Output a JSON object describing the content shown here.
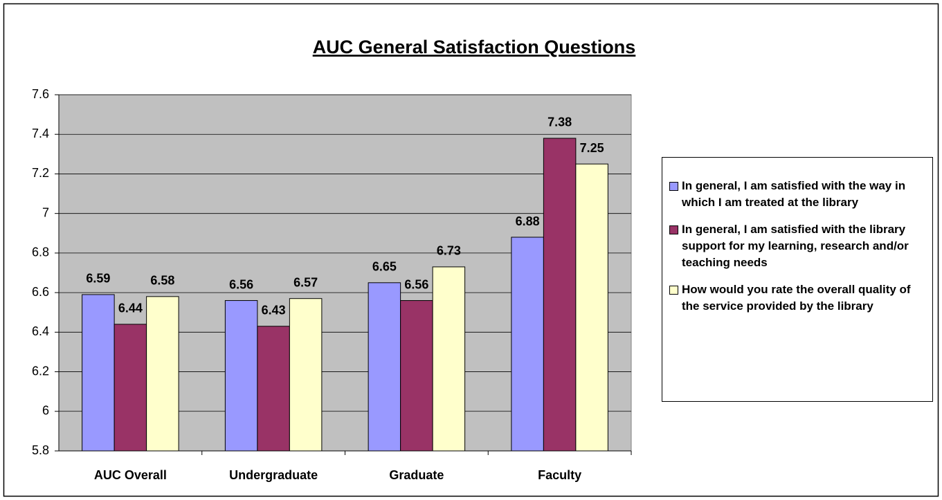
{
  "chart_data": {
    "type": "bar",
    "title": "AUC General Satisfaction Questions",
    "categories": [
      "AUC Overall",
      "Undergraduate",
      "Graduate",
      "Faculty"
    ],
    "series": [
      {
        "name": "In general, I am satisfied with the way in which I am treated at the library",
        "color": "#9999ff",
        "values": [
          6.59,
          6.56,
          6.65,
          6.88
        ]
      },
      {
        "name": "In general, I am satisfied with the library support for my learning, research and/or teaching needs",
        "color": "#993366",
        "values": [
          6.44,
          6.43,
          6.56,
          7.38
        ]
      },
      {
        "name": "How would you rate the overall quality of the service provided by the library",
        "color": "#ffffcc",
        "values": [
          6.58,
          6.57,
          6.73,
          7.25
        ]
      }
    ],
    "ylim": [
      5.8,
      7.6
    ],
    "yticks": [
      5.8,
      6,
      6.2,
      6.4,
      6.6,
      6.8,
      7,
      7.2,
      7.4,
      7.6
    ],
    "grid": true,
    "legend": "right"
  }
}
